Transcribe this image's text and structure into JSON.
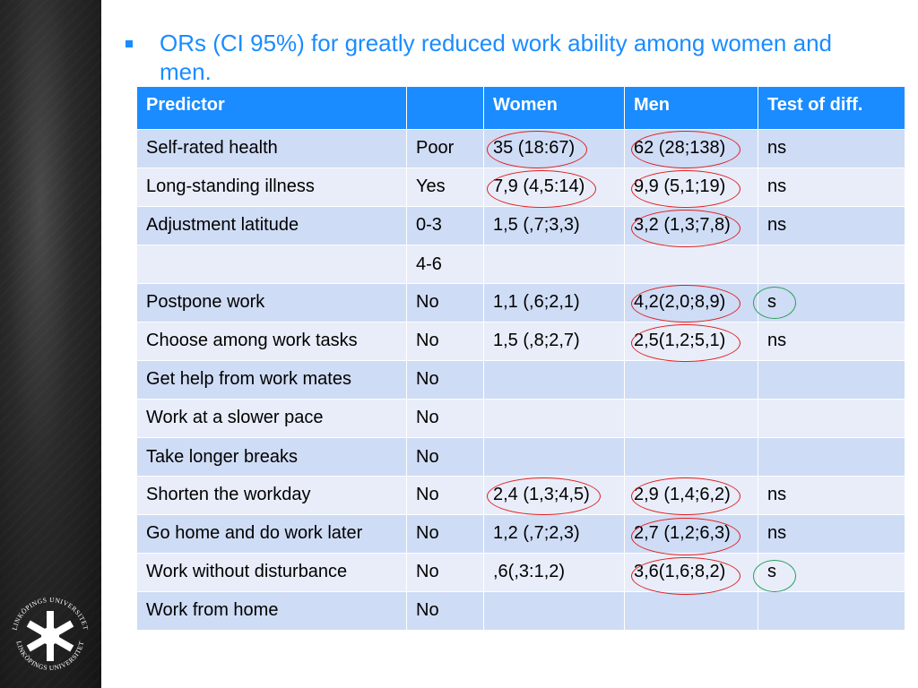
{
  "heading": "ORs (CI 95%) for greatly reduced work ability among women and men.",
  "table": {
    "headers": [
      "Predictor",
      "",
      "Women",
      "Men",
      "Test of diff."
    ],
    "rows": [
      [
        "Self-rated health",
        "Poor",
        "35 (18:67)",
        "62 (28;138)",
        "ns"
      ],
      [
        "Long-standing illness",
        "Yes",
        "7,9 (4,5:14)",
        "9,9 (5,1;19)",
        "ns"
      ],
      [
        "Adjustment latitude",
        "0-3",
        "1,5 (,7;3,3)",
        "3,2 (1,3;7,8)",
        "ns"
      ],
      [
        "",
        "4-6",
        "",
        "",
        ""
      ],
      [
        "Postpone work",
        "No",
        "1,1 (,6;2,1)",
        "4,2(2,0;8,9)",
        "s"
      ],
      [
        "Choose among work tasks",
        "No",
        "1,5 (,8;2,7)",
        "2,5(1,2;5,1)",
        "ns"
      ],
      [
        "Get help from work mates",
        "No",
        "",
        "",
        ""
      ],
      [
        "Work at a slower pace",
        "No",
        "",
        "",
        ""
      ],
      [
        "Take longer breaks",
        "No",
        "",
        "",
        ""
      ],
      [
        "Shorten the workday",
        "No",
        "2,4 (1,3;4,5)",
        "2,9 (1,4;6,2)",
        "ns"
      ],
      [
        "Go home and do work later",
        "No",
        "1,2 (,7;2,3)",
        "2,7 (1,2;6,3)",
        "ns"
      ],
      [
        "Work without disturbance",
        "No",
        ",6(,3:1,2)",
        "3,6(1,6;8,2)",
        "s"
      ],
      [
        "Work from home",
        "No",
        "",
        "",
        ""
      ]
    ]
  },
  "logo_text": "LINKÖPINGS UNIVERSITET",
  "colors": {
    "accent": "#1a8cff",
    "row_dark": "#cfdcf5",
    "row_light": "#e8edf9",
    "ring_red": "#e02020",
    "ring_green": "#2aa060"
  }
}
